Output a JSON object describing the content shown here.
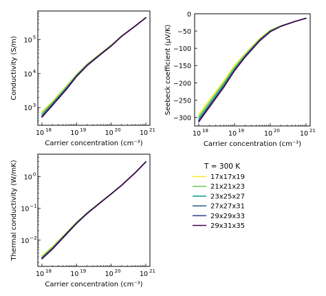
{
  "legend": {
    "title": "T = 300 K",
    "entries": [
      {
        "label": "17x17x19",
        "color": "#fde725"
      },
      {
        "label": "21x21x23",
        "color": "#6ece58"
      },
      {
        "label": "23x25x27",
        "color": "#1f9e89"
      },
      {
        "label": "27x27x31",
        "color": "#31688e"
      },
      {
        "label": "29x29x33",
        "color": "#3e4a89"
      },
      {
        "label": "29x31x35",
        "color": "#440154"
      }
    ]
  },
  "chart_data": [
    {
      "type": "line",
      "xscale": "log",
      "yscale": "log",
      "xlabel": "Carrier concentration (cm⁻³)",
      "ylabel": "Conductivity (S/m)",
      "xlim": [
        1e+18,
        1e+21
      ],
      "ylim": [
        300,
        700000
      ],
      "x_ticks": [
        {
          "base": "10",
          "exp": "18",
          "value": 1e+18
        },
        {
          "base": "10",
          "exp": "19",
          "value": 1e+19
        },
        {
          "base": "10",
          "exp": "20",
          "value": 1e+20
        },
        {
          "base": "10",
          "exp": "21",
          "value": 1e+21
        }
      ],
      "y_ticks": [
        {
          "base": "10",
          "exp": "3",
          "value": 1000
        },
        {
          "base": "10",
          "exp": "4",
          "value": 10000
        },
        {
          "base": "10",
          "exp": "5",
          "value": 100000
        }
      ],
      "x": [
        1e+18,
        2e+18,
        5e+18,
        1e+19,
        2e+19,
        5e+19,
        1e+20,
        2e+20,
        5e+20,
        1e+21
      ],
      "series": [
        {
          "name": "17x17x19",
          "values": [
            750,
            1500,
            4200,
            9500,
            19000,
            40000,
            70000,
            130000,
            260000,
            450000
          ]
        },
        {
          "name": "21x21x23",
          "values": [
            680,
            1400,
            4000,
            9200,
            18500,
            39000,
            68000,
            128000,
            258000,
            448000
          ]
        },
        {
          "name": "23x25x27",
          "values": [
            600,
            1300,
            3700,
            8800,
            18000,
            38500,
            67000,
            127000,
            256000,
            446000
          ]
        },
        {
          "name": "27x27x31",
          "values": [
            560,
            1220,
            3500,
            8500,
            17500,
            37500,
            66000,
            126000,
            255000,
            445000
          ]
        },
        {
          "name": "29x29x33",
          "values": [
            540,
            1180,
            3400,
            8300,
            17300,
            37000,
            65500,
            125500,
            254000,
            444000
          ]
        },
        {
          "name": "29x31x35",
          "values": [
            520,
            1150,
            3350,
            8200,
            17200,
            36800,
            65000,
            125000,
            253000,
            443000
          ]
        }
      ]
    },
    {
      "type": "line",
      "xscale": "log",
      "yscale": "linear",
      "xlabel": "Carrier concentration (cm⁻³)",
      "ylabel": "Seebeck coefficient (μV/K)",
      "xlim": [
        1e+18,
        1e+21
      ],
      "ylim": [
        -325,
        0
      ],
      "x_ticks": [
        {
          "base": "10",
          "exp": "18",
          "value": 1e+18
        },
        {
          "base": "10",
          "exp": "19",
          "value": 1e+19
        },
        {
          "base": "10",
          "exp": "20",
          "value": 1e+20
        },
        {
          "base": "10",
          "exp": "21",
          "value": 1e+21
        }
      ],
      "y_ticks": [
        {
          "label": "0",
          "value": 0
        },
        {
          "label": "−50",
          "value": -50
        },
        {
          "label": "−100",
          "value": -100
        },
        {
          "label": "−150",
          "value": -150
        },
        {
          "label": "−200",
          "value": -200
        },
        {
          "label": "−250",
          "value": -250
        },
        {
          "label": "−300",
          "value": -300
        }
      ],
      "x": [
        1e+18,
        2e+18,
        5e+18,
        1e+19,
        2e+19,
        5e+19,
        1e+20,
        2e+20,
        5e+20,
        1e+21
      ],
      "series": [
        {
          "name": "17x17x19",
          "values": [
            -292,
            -250,
            -195,
            -150,
            -115,
            -72,
            -47,
            -35,
            -22,
            -13
          ]
        },
        {
          "name": "21x21x23",
          "values": [
            -298,
            -256,
            -200,
            -155,
            -118,
            -74,
            -48,
            -35,
            -22,
            -13
          ]
        },
        {
          "name": "23x25x27",
          "values": [
            -304,
            -262,
            -205,
            -160,
            -121,
            -76,
            -50,
            -36,
            -22,
            -13
          ]
        },
        {
          "name": "27x27x31",
          "values": [
            -309,
            -266,
            -210,
            -163,
            -123,
            -77,
            -51,
            -36,
            -22,
            -13
          ]
        },
        {
          "name": "29x29x33",
          "values": [
            -311,
            -268,
            -212,
            -164,
            -124,
            -78,
            -52,
            -36,
            -22,
            -13
          ]
        },
        {
          "name": "29x31x35",
          "values": [
            -313,
            -270,
            -213,
            -165,
            -125,
            -79,
            -52,
            -36,
            -22,
            -13
          ]
        }
      ]
    },
    {
      "type": "line",
      "xscale": "log",
      "yscale": "log",
      "xlabel": "Carrier concentration (cm⁻³)",
      "ylabel": "Thermal conductivity (W/mK)",
      "xlim": [
        1e+18,
        1e+21
      ],
      "ylim": [
        0.0015,
        5
      ],
      "x_ticks": [
        {
          "base": "10",
          "exp": "18",
          "value": 1e+18
        },
        {
          "base": "10",
          "exp": "19",
          "value": 1e+19
        },
        {
          "base": "10",
          "exp": "20",
          "value": 1e+20
        },
        {
          "base": "10",
          "exp": "21",
          "value": 1e+21
        }
      ],
      "y_ticks": [
        {
          "base": "10",
          "exp": "−2",
          "value": 0.01
        },
        {
          "base": "10",
          "exp": "−1",
          "value": 0.1
        },
        {
          "base": "10",
          "exp": "0",
          "value": 1
        }
      ],
      "x": [
        1e+18,
        2e+18,
        5e+18,
        1e+19,
        2e+19,
        5e+19,
        1e+20,
        2e+20,
        5e+20,
        1e+21
      ],
      "series": [
        {
          "name": "17x17x19",
          "values": [
            0.0032,
            0.0062,
            0.017,
            0.037,
            0.072,
            0.16,
            0.29,
            0.54,
            1.35,
            2.9
          ]
        },
        {
          "name": "21x21x23",
          "values": [
            0.003,
            0.0059,
            0.0165,
            0.036,
            0.071,
            0.158,
            0.288,
            0.535,
            1.34,
            2.9
          ]
        },
        {
          "name": "23x25x27",
          "values": [
            0.0028,
            0.0056,
            0.016,
            0.035,
            0.07,
            0.156,
            0.285,
            0.53,
            1.33,
            2.88
          ]
        },
        {
          "name": "27x27x31",
          "values": [
            0.0027,
            0.0054,
            0.0155,
            0.034,
            0.069,
            0.155,
            0.283,
            0.528,
            1.33,
            2.88
          ]
        },
        {
          "name": "29x29x33",
          "values": [
            0.0026,
            0.0053,
            0.0152,
            0.034,
            0.068,
            0.154,
            0.282,
            0.527,
            1.32,
            2.87
          ]
        },
        {
          "name": "29x31x35",
          "values": [
            0.0026,
            0.0052,
            0.015,
            0.0335,
            0.068,
            0.153,
            0.281,
            0.526,
            1.32,
            2.87
          ]
        }
      ]
    }
  ]
}
